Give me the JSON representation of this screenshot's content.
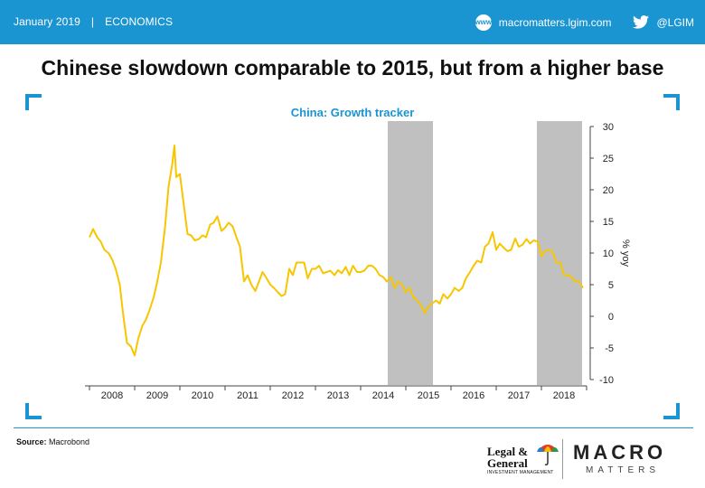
{
  "header": {
    "date": "January 2019",
    "separator": "|",
    "section": "ECONOMICS",
    "website": "macromatters.lgim.com",
    "www_icon_text": "www",
    "twitter_handle": "@LGIM",
    "bar_color": "#1a95d1"
  },
  "headline": "Chinese slowdown comparable to 2015, but from a higher base",
  "chart_data": {
    "type": "line",
    "title": "China: Growth tracker",
    "ylabel": "% yoy",
    "xlabel": "",
    "categories": [
      "2008",
      "2009",
      "2010",
      "2011",
      "2012",
      "2013",
      "2014",
      "2015",
      "2016",
      "2017",
      "2018"
    ],
    "xlim": [
      2007.9,
      2019.0
    ],
    "ylim": [
      -10,
      30
    ],
    "yticks": [
      -10,
      -5,
      0,
      5,
      10,
      15,
      20,
      25,
      30
    ],
    "ytick_labels": [
      "-10",
      "-5",
      "0",
      "5",
      "10",
      "15",
      "20",
      "25",
      "30"
    ],
    "line_color": "#f7c600",
    "shade_color": "#c0c0c0",
    "shaded_periods": [
      [
        2014.6,
        2015.6
      ],
      [
        2017.9,
        2018.9
      ]
    ],
    "series": [
      {
        "values": [
          [
            2008.0,
            12.5
          ],
          [
            2008.08,
            13.8
          ],
          [
            2008.17,
            12.5
          ],
          [
            2008.25,
            11.8
          ],
          [
            2008.33,
            10.5
          ],
          [
            2008.42,
            10.0
          ],
          [
            2008.5,
            9.0
          ],
          [
            2008.58,
            7.5
          ],
          [
            2008.67,
            5.0
          ],
          [
            2008.75,
            0.0
          ],
          [
            2008.83,
            -4.2
          ],
          [
            2008.92,
            -4.8
          ],
          [
            2009.0,
            -6.2
          ],
          [
            2009.08,
            -3.5
          ],
          [
            2009.17,
            -1.5
          ],
          [
            2009.25,
            -0.5
          ],
          [
            2009.33,
            1.0
          ],
          [
            2009.42,
            3.0
          ],
          [
            2009.5,
            5.5
          ],
          [
            2009.58,
            8.5
          ],
          [
            2009.67,
            14.0
          ],
          [
            2009.75,
            20.5
          ],
          [
            2009.83,
            24.0
          ],
          [
            2009.88,
            27.0
          ],
          [
            2009.92,
            22.0
          ],
          [
            2010.0,
            22.5
          ],
          [
            2010.08,
            18.0
          ],
          [
            2010.17,
            13.0
          ],
          [
            2010.25,
            12.8
          ],
          [
            2010.33,
            12.0
          ],
          [
            2010.42,
            12.2
          ],
          [
            2010.5,
            12.8
          ],
          [
            2010.58,
            12.5
          ],
          [
            2010.67,
            14.5
          ],
          [
            2010.75,
            14.8
          ],
          [
            2010.83,
            15.8
          ],
          [
            2010.92,
            13.5
          ],
          [
            2011.0,
            14.0
          ],
          [
            2011.08,
            14.8
          ],
          [
            2011.17,
            14.2
          ],
          [
            2011.25,
            12.5
          ],
          [
            2011.33,
            11.0
          ],
          [
            2011.42,
            5.5
          ],
          [
            2011.5,
            6.5
          ],
          [
            2011.58,
            5.0
          ],
          [
            2011.67,
            4.0
          ],
          [
            2011.75,
            5.5
          ],
          [
            2011.83,
            7.0
          ],
          [
            2011.92,
            6.0
          ],
          [
            2012.0,
            5.0
          ],
          [
            2012.08,
            4.5
          ],
          [
            2012.17,
            3.8
          ],
          [
            2012.25,
            3.2
          ],
          [
            2012.33,
            3.5
          ],
          [
            2012.42,
            7.5
          ],
          [
            2012.5,
            6.5
          ],
          [
            2012.58,
            8.5
          ],
          [
            2012.67,
            8.5
          ],
          [
            2012.75,
            8.5
          ],
          [
            2012.83,
            6.0
          ],
          [
            2012.92,
            7.5
          ],
          [
            2013.0,
            7.5
          ],
          [
            2013.08,
            8.0
          ],
          [
            2013.17,
            6.8
          ],
          [
            2013.25,
            7.0
          ],
          [
            2013.33,
            7.2
          ],
          [
            2013.42,
            6.5
          ],
          [
            2013.5,
            7.3
          ],
          [
            2013.58,
            6.8
          ],
          [
            2013.67,
            7.8
          ],
          [
            2013.75,
            6.5
          ],
          [
            2013.83,
            8.0
          ],
          [
            2013.92,
            7.0
          ],
          [
            2014.0,
            7.0
          ],
          [
            2014.08,
            7.2
          ],
          [
            2014.17,
            8.0
          ],
          [
            2014.25,
            8.0
          ],
          [
            2014.33,
            7.5
          ],
          [
            2014.42,
            6.5
          ],
          [
            2014.5,
            6.2
          ],
          [
            2014.58,
            5.5
          ],
          [
            2014.67,
            6.2
          ],
          [
            2014.75,
            4.5
          ],
          [
            2014.83,
            5.5
          ],
          [
            2014.92,
            5.0
          ],
          [
            2015.0,
            3.8
          ],
          [
            2015.08,
            4.5
          ],
          [
            2015.17,
            3.0
          ],
          [
            2015.25,
            2.5
          ],
          [
            2015.33,
            1.8
          ],
          [
            2015.42,
            0.5
          ],
          [
            2015.5,
            1.5
          ],
          [
            2015.58,
            2.0
          ],
          [
            2015.67,
            2.5
          ],
          [
            2015.75,
            2.0
          ],
          [
            2015.83,
            3.5
          ],
          [
            2015.92,
            2.8
          ],
          [
            2016.0,
            3.5
          ],
          [
            2016.08,
            4.5
          ],
          [
            2016.17,
            4.0
          ],
          [
            2016.25,
            4.5
          ],
          [
            2016.33,
            6.0
          ],
          [
            2016.42,
            7.0
          ],
          [
            2016.5,
            8.0
          ],
          [
            2016.58,
            8.8
          ],
          [
            2016.67,
            8.5
          ],
          [
            2016.75,
            11.0
          ],
          [
            2016.83,
            11.5
          ],
          [
            2016.92,
            13.3
          ],
          [
            2017.0,
            10.5
          ],
          [
            2017.08,
            11.5
          ],
          [
            2017.17,
            10.8
          ],
          [
            2017.25,
            10.3
          ],
          [
            2017.33,
            10.5
          ],
          [
            2017.42,
            12.3
          ],
          [
            2017.5,
            11.0
          ],
          [
            2017.58,
            11.3
          ],
          [
            2017.67,
            12.2
          ],
          [
            2017.75,
            11.5
          ],
          [
            2017.83,
            12.0
          ],
          [
            2017.92,
            11.8
          ],
          [
            2018.0,
            9.5
          ],
          [
            2018.08,
            10.3
          ],
          [
            2018.17,
            10.5
          ],
          [
            2018.25,
            10.2
          ],
          [
            2018.33,
            8.5
          ],
          [
            2018.42,
            8.5
          ],
          [
            2018.5,
            6.5
          ],
          [
            2018.58,
            6.5
          ],
          [
            2018.67,
            6.2
          ],
          [
            2018.75,
            5.5
          ],
          [
            2018.83,
            5.5
          ],
          [
            2018.92,
            4.5
          ]
        ]
      }
    ],
    "grid": false,
    "legend": "none"
  },
  "footer": {
    "source_label": "Source:",
    "source_text": "Macrobond",
    "lg_line1": "Legal &",
    "lg_line2": "General",
    "lg_line3": "INVESTMENT MANAGEMENT",
    "mm_macro": "MACRO",
    "mm_matters": "MATTERS"
  }
}
